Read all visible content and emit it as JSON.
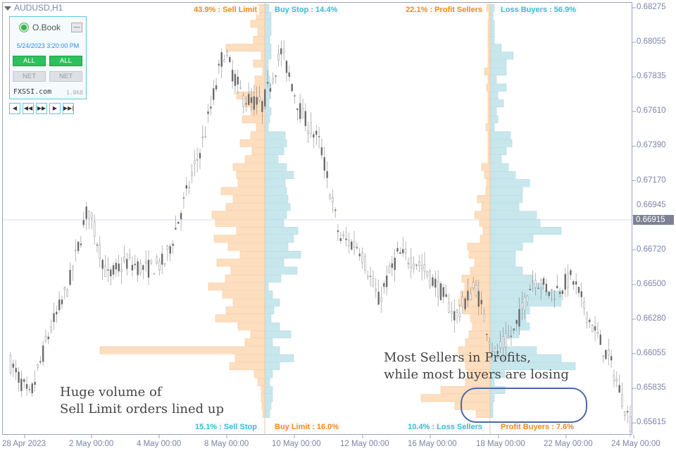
{
  "symbol": "AUDUSD,H1",
  "panel": {
    "title": "O.Book",
    "minimize": "—",
    "datetime": "5/24/2023 3:20:00 PM",
    "all1": "ALL",
    "all2": "ALL",
    "net1": "NET",
    "net2": "NET",
    "brand": "FXSSI.com",
    "version": "1.068",
    "nav": [
      "◀",
      "◀◀",
      "▶▶",
      "▶",
      "▶▶|"
    ]
  },
  "order_book": {
    "top_left": "43.9% : Sell Limit",
    "top_right": "Buy Stop : 14.4%",
    "bottom_left": "15.1% : Sell Stop",
    "bottom_right": "Buy Limit : 16.0%"
  },
  "position_book": {
    "top_left": "22.1% : Profit Sellers",
    "top_right": "Loss Buyers : 56.9%",
    "bottom_left": "10.4% : Loss Sellers",
    "bottom_right": "Profit Buyers : 7.6%"
  },
  "annotations": {
    "left": [
      "Huge volume of",
      "Sell Limit orders lined up"
    ],
    "right": [
      "Most Sellers in Profits,",
      "while most buyers are losing"
    ]
  },
  "price_axis": [
    "0.68275",
    "0.68055",
    "0.67835",
    "0.67610",
    "0.67390",
    "0.67170",
    "0.66945",
    "0.66720",
    "0.66500",
    "0.66280",
    "0.66055",
    "0.65835",
    "0.65615"
  ],
  "current_price": "0.66915",
  "time_axis": [
    "28 Apr 2023",
    "2 May 00:00",
    "4 May 00:00",
    "8 May 00:00",
    "10 May 00:00",
    "12 May 00:00",
    "16 May 00:00",
    "18 May 00:00",
    "22 May 00:00",
    "24 May 00:00"
  ],
  "colors": {
    "sell": "#fdd9b5",
    "buy": "#bfe3ea",
    "sell_text": "#f28a1e",
    "buy_text": "#3bbcd3",
    "oval": "#4a68a8"
  },
  "chart_data": {
    "type": "candlestick",
    "price_range": [
      0.65615,
      0.68275
    ],
    "price_path": [
      0.66,
      0.6578,
      0.662,
      0.665,
      0.67,
      0.6655,
      0.6665,
      0.666,
      0.6665,
      0.6705,
      0.6745,
      0.68,
      0.677,
      0.6765,
      0.68,
      0.676,
      0.674,
      0.668,
      0.6675,
      0.664,
      0.667,
      0.6665,
      0.665,
      0.663,
      0.665,
      0.6605,
      0.662,
      0.6655,
      0.6645,
      0.6655,
      0.6625,
      0.66,
      0.6562
    ],
    "order_book_sell": [
      10,
      12,
      20,
      10,
      16,
      55,
      5,
      16,
      3,
      14,
      14,
      40,
      28,
      20,
      32,
      12,
      20,
      35,
      18,
      28,
      45,
      40,
      38,
      62,
      45,
      55,
      75,
      70,
      40,
      72,
      52,
      35,
      68,
      48,
      56,
      80,
      60,
      45,
      55,
      70,
      38,
      20,
      28,
      234,
      42,
      50,
      15,
      10,
      5,
      5,
      4,
      3
    ],
    "order_book_buy": [
      5,
      8,
      8,
      8,
      6,
      8,
      8,
      4,
      4,
      6,
      8,
      6,
      5,
      8,
      6,
      4,
      28,
      30,
      26,
      18,
      30,
      40,
      28,
      30,
      32,
      35,
      30,
      26,
      46,
      40,
      32,
      50,
      26,
      45,
      22,
      4,
      10,
      20,
      12,
      8,
      20,
      36,
      10,
      20,
      40,
      20,
      10,
      6,
      10,
      10,
      8,
      6
    ],
    "position_book_sell": [
      5,
      2,
      3,
      3,
      3,
      3,
      3,
      3,
      8,
      3,
      5,
      3,
      3,
      3,
      3,
      6,
      3,
      3,
      3,
      3,
      12,
      8,
      5,
      6,
      18,
      12,
      22,
      15,
      10,
      14,
      32,
      30,
      22,
      28,
      40,
      36,
      42,
      45,
      38,
      28,
      25,
      30,
      35,
      45,
      40,
      35,
      32,
      35,
      70,
      98,
      50,
      20
    ],
    "position_book_buy": [
      5,
      3,
      5,
      5,
      5,
      15,
      32,
      22,
      22,
      8,
      22,
      10,
      18,
      8,
      10,
      5,
      28,
      30,
      22,
      15,
      25,
      35,
      55,
      45,
      45,
      40,
      65,
      70,
      100,
      60,
      45,
      35,
      35,
      45,
      60,
      75,
      100,
      100,
      55,
      50,
      55,
      40,
      20,
      65,
      100,
      120,
      20,
      5,
      20,
      5,
      3,
      3
    ]
  }
}
